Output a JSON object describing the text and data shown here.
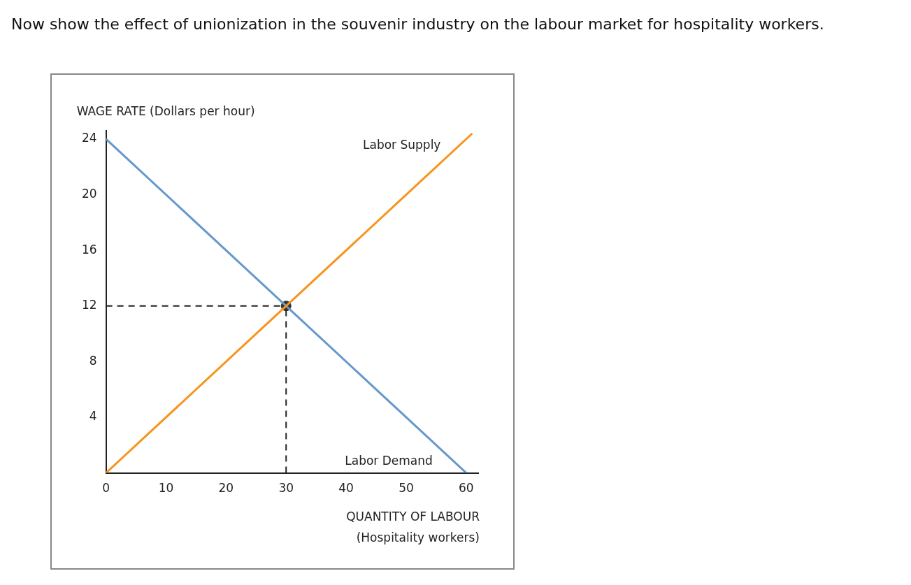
{
  "chart_data": {
    "type": "line",
    "title": "Now show the effect of unionization in the souvenir industry on the labour market for hospitality workers.",
    "xlabel": "QUANTITY OF LABOUR\n(Hospitality workers)",
    "ylabel": "WAGE RATE (Dollars per hour)",
    "xlim": [
      0,
      62
    ],
    "ylim": [
      0,
      24.6
    ],
    "xticks": [
      0,
      10,
      20,
      30,
      40,
      50,
      60
    ],
    "yticks": [
      4,
      8,
      12,
      16,
      20,
      24
    ],
    "series": [
      {
        "name": "Labor Supply",
        "color": "#f7941d",
        "x": [
          0,
          61
        ],
        "values": [
          0,
          24.4
        ],
        "marker": "none"
      },
      {
        "name": "Labor Demand",
        "color": "#6699cc",
        "x": [
          0,
          60
        ],
        "values": [
          24,
          0
        ],
        "marker": "none"
      },
      {
        "color": "#222222",
        "x": [
          0,
          30
        ],
        "values": [
          12,
          12
        ],
        "marker": "none",
        "line_style": "dashed"
      },
      {
        "color": "#222222",
        "x": [
          30,
          30
        ],
        "values": [
          0,
          12
        ],
        "marker": "none",
        "line_style": "dashed"
      },
      {
        "type": "scatter",
        "color": "#333333",
        "x": [
          30
        ],
        "values": [
          12
        ],
        "marker": "circle"
      }
    ]
  }
}
